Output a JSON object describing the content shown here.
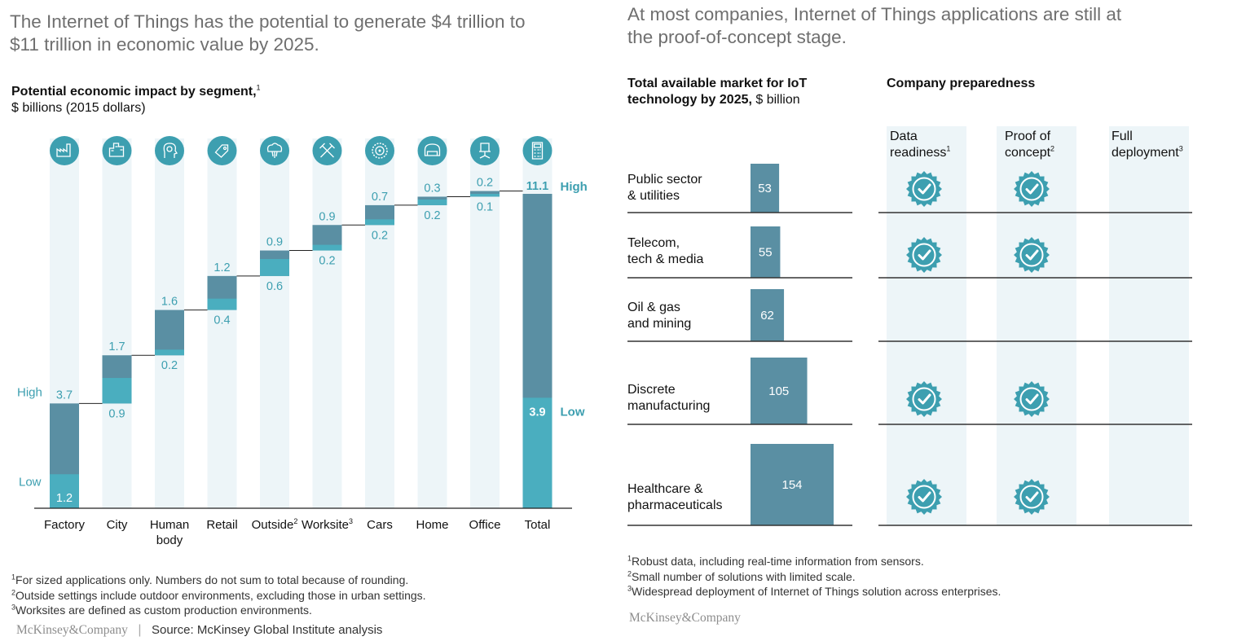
{
  "left": {
    "headline_line1": "The Internet of Things has the potential to generate $4 trillion to",
    "headline_line2": "$11 trillion in economic value by 2025.",
    "subtitle_bold": "Potential economic impact by segment,",
    "subtitle_sup": "1",
    "subtitle_units": "$ billions (2015 dollars)",
    "footnotes": [
      {
        "num": "1",
        "text": "For sized applications only. Numbers do not sum to total because of rounding."
      },
      {
        "num": "2",
        "text": "Outside settings include outdoor environments, excluding those in urban settings."
      },
      {
        "num": "3",
        "text": "Worksites are defined as custom production environments."
      }
    ],
    "logo": "McKinsey&Company",
    "separator": "|",
    "source": "Source: McKinsey Global Institute analysis"
  },
  "right": {
    "headline_line1": "At most companies, Internet of Things applications are still at",
    "headline_line2": "the proof-of-concept stage.",
    "market_title_line1": "Total available market for IoT",
    "market_title_line2_bold": "technology by 2025,",
    "market_title_line2_units": " $ billion",
    "preparedness_title": "Company preparedness",
    "columns": [
      {
        "line1": "Data",
        "line2": "readiness",
        "sup": "1"
      },
      {
        "line1": "Proof of",
        "line2": "concept",
        "sup": "2"
      },
      {
        "line1": "Full",
        "line2": "deployment",
        "sup": "3"
      }
    ],
    "rows": [
      {
        "line1": "Public sector",
        "line2": "& utilities",
        "value": 53,
        "data_readiness": true,
        "proof_of_concept": true,
        "full_deployment": false
      },
      {
        "line1": "Telecom,",
        "line2": "tech & media",
        "value": 55,
        "data_readiness": true,
        "proof_of_concept": true,
        "full_deployment": false
      },
      {
        "line1": "Oil & gas",
        "line2": "and mining",
        "value": 62,
        "data_readiness": false,
        "proof_of_concept": false,
        "full_deployment": false
      },
      {
        "line1": "Discrete",
        "line2": "manufacturing",
        "value": 105,
        "data_readiness": true,
        "proof_of_concept": true,
        "full_deployment": false
      },
      {
        "line1": "Healthcare &",
        "line2": "pharmaceuticals",
        "value": 154,
        "data_readiness": true,
        "proof_of_concept": true,
        "full_deployment": false
      }
    ],
    "footnotes": [
      {
        "num": "1",
        "text": "Robust data, including real-time information from sensors."
      },
      {
        "num": "2",
        "text": "Small number of solutions with limited scale."
      },
      {
        "num": "3",
        "text": "Widespread deployment of Internet of Things solution across enterprises."
      }
    ],
    "logo": "McKinsey&Company"
  },
  "colors": {
    "dark_teal": "#5a8fa3",
    "light_teal": "#4aaebf",
    "column_bg": "#edf5f8",
    "label_teal": "#3d9fb0",
    "headline_gray": "#6f6f6f"
  },
  "chart_data": [
    {
      "type": "bar",
      "subtype": "waterfall-range",
      "title": "Potential economic impact by segment",
      "ylabel": "$ billions (2015 dollars)",
      "categories": [
        "Factory",
        "City",
        "Human body",
        "Retail",
        "Outside",
        "Worksite",
        "Cars",
        "Home",
        "Office",
        "Total"
      ],
      "category_sups": [
        "",
        "",
        "",
        "",
        "2",
        "3",
        "",
        "",
        "",
        ""
      ],
      "icons": [
        "factory-icon",
        "city-icon",
        "human-body-icon",
        "retail-icon",
        "outside-icon",
        "worksite-icon",
        "cars-icon",
        "home-icon",
        "office-icon",
        "total-icon"
      ],
      "series": [
        {
          "name": "Low",
          "values": [
            1.2,
            0.9,
            0.2,
            0.4,
            0.6,
            0.2,
            0.2,
            0.2,
            0.1,
            3.9
          ]
        },
        {
          "name": "High",
          "values": [
            3.7,
            1.7,
            1.6,
            1.2,
            0.9,
            0.9,
            0.7,
            0.3,
            0.2,
            11.1
          ]
        }
      ],
      "high_label": "High",
      "low_label": "Low",
      "ylim": [
        0,
        11.1
      ]
    },
    {
      "type": "bar",
      "orientation": "horizontal",
      "title": "Total available market for IoT technology by 2025",
      "units": "$ billion",
      "categories": [
        "Public sector & utilities",
        "Telecom, tech & media",
        "Oil & gas and mining",
        "Discrete manufacturing",
        "Healthcare & pharmaceuticals"
      ],
      "values": [
        53,
        55,
        62,
        105,
        154
      ]
    }
  ]
}
